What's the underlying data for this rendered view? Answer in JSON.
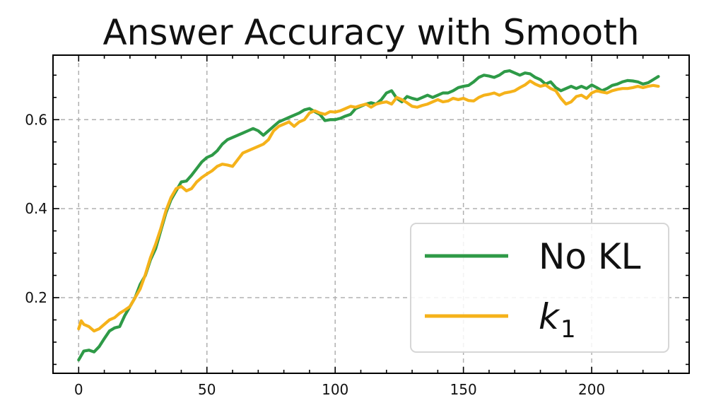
{
  "chart_data": {
    "type": "line",
    "title": "Answer Accuracy with Smooth",
    "xlabel": "",
    "ylabel": "",
    "xlim": [
      -10,
      238
    ],
    "ylim": [
      0.03,
      0.745
    ],
    "xticks": [
      0,
      50,
      100,
      150,
      200
    ],
    "xtick_labels": [
      "0",
      "50",
      "100",
      "150",
      "200"
    ],
    "yticks": [
      0.2,
      0.4,
      0.6
    ],
    "ytick_labels": [
      "0.2",
      "0.4",
      "0.6"
    ],
    "grid": true,
    "legend_position": "lower-right",
    "series": [
      {
        "name": "No KL",
        "color": "#2e9a47",
        "points": [
          [
            0,
            0.06
          ],
          [
            2,
            0.08
          ],
          [
            4,
            0.082
          ],
          [
            6,
            0.078
          ],
          [
            8,
            0.09
          ],
          [
            10,
            0.108
          ],
          [
            12,
            0.125
          ],
          [
            14,
            0.132
          ],
          [
            16,
            0.135
          ],
          [
            18,
            0.16
          ],
          [
            20,
            0.18
          ],
          [
            22,
            0.2
          ],
          [
            24,
            0.23
          ],
          [
            26,
            0.25
          ],
          [
            28,
            0.285
          ],
          [
            30,
            0.31
          ],
          [
            32,
            0.35
          ],
          [
            34,
            0.39
          ],
          [
            36,
            0.42
          ],
          [
            38,
            0.44
          ],
          [
            40,
            0.46
          ],
          [
            42,
            0.462
          ],
          [
            44,
            0.475
          ],
          [
            46,
            0.49
          ],
          [
            48,
            0.505
          ],
          [
            50,
            0.515
          ],
          [
            52,
            0.52
          ],
          [
            54,
            0.53
          ],
          [
            56,
            0.545
          ],
          [
            58,
            0.555
          ],
          [
            60,
            0.56
          ],
          [
            62,
            0.565
          ],
          [
            64,
            0.57
          ],
          [
            66,
            0.575
          ],
          [
            68,
            0.58
          ],
          [
            70,
            0.575
          ],
          [
            72,
            0.565
          ],
          [
            74,
            0.575
          ],
          [
            76,
            0.585
          ],
          [
            78,
            0.595
          ],
          [
            80,
            0.6
          ],
          [
            82,
            0.605
          ],
          [
            84,
            0.61
          ],
          [
            86,
            0.615
          ],
          [
            88,
            0.622
          ],
          [
            90,
            0.625
          ],
          [
            92,
            0.618
          ],
          [
            94,
            0.612
          ],
          [
            96,
            0.598
          ],
          [
            98,
            0.6
          ],
          [
            100,
            0.6
          ],
          [
            102,
            0.603
          ],
          [
            104,
            0.608
          ],
          [
            106,
            0.612
          ],
          [
            108,
            0.625
          ],
          [
            110,
            0.63
          ],
          [
            112,
            0.635
          ],
          [
            114,
            0.638
          ],
          [
            116,
            0.635
          ],
          [
            118,
            0.645
          ],
          [
            120,
            0.66
          ],
          [
            122,
            0.665
          ],
          [
            124,
            0.648
          ],
          [
            126,
            0.64
          ],
          [
            128,
            0.652
          ],
          [
            130,
            0.648
          ],
          [
            132,
            0.645
          ],
          [
            134,
            0.65
          ],
          [
            136,
            0.655
          ],
          [
            138,
            0.65
          ],
          [
            140,
            0.655
          ],
          [
            142,
            0.66
          ],
          [
            144,
            0.66
          ],
          [
            146,
            0.665
          ],
          [
            148,
            0.672
          ],
          [
            150,
            0.675
          ],
          [
            152,
            0.677
          ],
          [
            154,
            0.685
          ],
          [
            156,
            0.695
          ],
          [
            158,
            0.7
          ],
          [
            160,
            0.698
          ],
          [
            162,
            0.695
          ],
          [
            164,
            0.7
          ],
          [
            166,
            0.708
          ],
          [
            168,
            0.71
          ],
          [
            170,
            0.705
          ],
          [
            172,
            0.7
          ],
          [
            174,
            0.705
          ],
          [
            176,
            0.703
          ],
          [
            178,
            0.695
          ],
          [
            180,
            0.69
          ],
          [
            182,
            0.68
          ],
          [
            184,
            0.685
          ],
          [
            186,
            0.672
          ],
          [
            188,
            0.665
          ],
          [
            190,
            0.67
          ],
          [
            192,
            0.675
          ],
          [
            194,
            0.67
          ],
          [
            196,
            0.675
          ],
          [
            198,
            0.67
          ],
          [
            200,
            0.678
          ],
          [
            202,
            0.672
          ],
          [
            204,
            0.665
          ],
          [
            206,
            0.67
          ],
          [
            208,
            0.677
          ],
          [
            210,
            0.68
          ],
          [
            212,
            0.685
          ],
          [
            214,
            0.688
          ],
          [
            216,
            0.687
          ],
          [
            218,
            0.685
          ],
          [
            220,
            0.68
          ],
          [
            222,
            0.683
          ],
          [
            224,
            0.69
          ],
          [
            226,
            0.697
          ]
        ]
      },
      {
        "name": "k1",
        "color": "#f5b21a",
        "points": [
          [
            0,
            0.13
          ],
          [
            1,
            0.148
          ],
          [
            2,
            0.14
          ],
          [
            4,
            0.135
          ],
          [
            6,
            0.125
          ],
          [
            8,
            0.13
          ],
          [
            10,
            0.14
          ],
          [
            12,
            0.15
          ],
          [
            14,
            0.155
          ],
          [
            16,
            0.165
          ],
          [
            18,
            0.172
          ],
          [
            20,
            0.18
          ],
          [
            22,
            0.2
          ],
          [
            24,
            0.22
          ],
          [
            26,
            0.252
          ],
          [
            28,
            0.29
          ],
          [
            30,
            0.32
          ],
          [
            32,
            0.355
          ],
          [
            34,
            0.395
          ],
          [
            36,
            0.425
          ],
          [
            38,
            0.445
          ],
          [
            40,
            0.45
          ],
          [
            42,
            0.44
          ],
          [
            44,
            0.445
          ],
          [
            46,
            0.46
          ],
          [
            48,
            0.47
          ],
          [
            50,
            0.478
          ],
          [
            52,
            0.485
          ],
          [
            54,
            0.495
          ],
          [
            56,
            0.5
          ],
          [
            58,
            0.498
          ],
          [
            60,
            0.495
          ],
          [
            62,
            0.51
          ],
          [
            64,
            0.525
          ],
          [
            66,
            0.53
          ],
          [
            68,
            0.535
          ],
          [
            70,
            0.54
          ],
          [
            72,
            0.545
          ],
          [
            74,
            0.555
          ],
          [
            76,
            0.575
          ],
          [
            78,
            0.585
          ],
          [
            80,
            0.59
          ],
          [
            82,
            0.595
          ],
          [
            84,
            0.585
          ],
          [
            86,
            0.595
          ],
          [
            88,
            0.6
          ],
          [
            90,
            0.615
          ],
          [
            92,
            0.62
          ],
          [
            94,
            0.615
          ],
          [
            96,
            0.612
          ],
          [
            98,
            0.618
          ],
          [
            100,
            0.617
          ],
          [
            102,
            0.62
          ],
          [
            104,
            0.625
          ],
          [
            106,
            0.63
          ],
          [
            108,
            0.628
          ],
          [
            110,
            0.632
          ],
          [
            112,
            0.635
          ],
          [
            114,
            0.628
          ],
          [
            116,
            0.635
          ],
          [
            118,
            0.638
          ],
          [
            120,
            0.64
          ],
          [
            122,
            0.635
          ],
          [
            124,
            0.65
          ],
          [
            126,
            0.645
          ],
          [
            128,
            0.638
          ],
          [
            130,
            0.63
          ],
          [
            132,
            0.628
          ],
          [
            134,
            0.632
          ],
          [
            136,
            0.635
          ],
          [
            138,
            0.64
          ],
          [
            140,
            0.645
          ],
          [
            142,
            0.64
          ],
          [
            144,
            0.642
          ],
          [
            146,
            0.648
          ],
          [
            148,
            0.645
          ],
          [
            150,
            0.648
          ],
          [
            152,
            0.643
          ],
          [
            154,
            0.642
          ],
          [
            156,
            0.65
          ],
          [
            158,
            0.655
          ],
          [
            160,
            0.657
          ],
          [
            162,
            0.66
          ],
          [
            164,
            0.655
          ],
          [
            166,
            0.66
          ],
          [
            168,
            0.662
          ],
          [
            170,
            0.665
          ],
          [
            172,
            0.672
          ],
          [
            174,
            0.678
          ],
          [
            176,
            0.687
          ],
          [
            178,
            0.68
          ],
          [
            180,
            0.675
          ],
          [
            182,
            0.678
          ],
          [
            184,
            0.67
          ],
          [
            186,
            0.665
          ],
          [
            188,
            0.648
          ],
          [
            190,
            0.635
          ],
          [
            192,
            0.64
          ],
          [
            194,
            0.652
          ],
          [
            196,
            0.655
          ],
          [
            198,
            0.648
          ],
          [
            200,
            0.66
          ],
          [
            202,
            0.665
          ],
          [
            204,
            0.662
          ],
          [
            206,
            0.66
          ],
          [
            208,
            0.665
          ],
          [
            210,
            0.668
          ],
          [
            212,
            0.67
          ],
          [
            214,
            0.67
          ],
          [
            216,
            0.672
          ],
          [
            218,
            0.675
          ],
          [
            220,
            0.672
          ],
          [
            222,
            0.675
          ],
          [
            224,
            0.677
          ],
          [
            226,
            0.675
          ]
        ]
      }
    ]
  },
  "legend": {
    "no_kl_label": "No KL",
    "k1_base": "k",
    "k1_sub": "1"
  }
}
